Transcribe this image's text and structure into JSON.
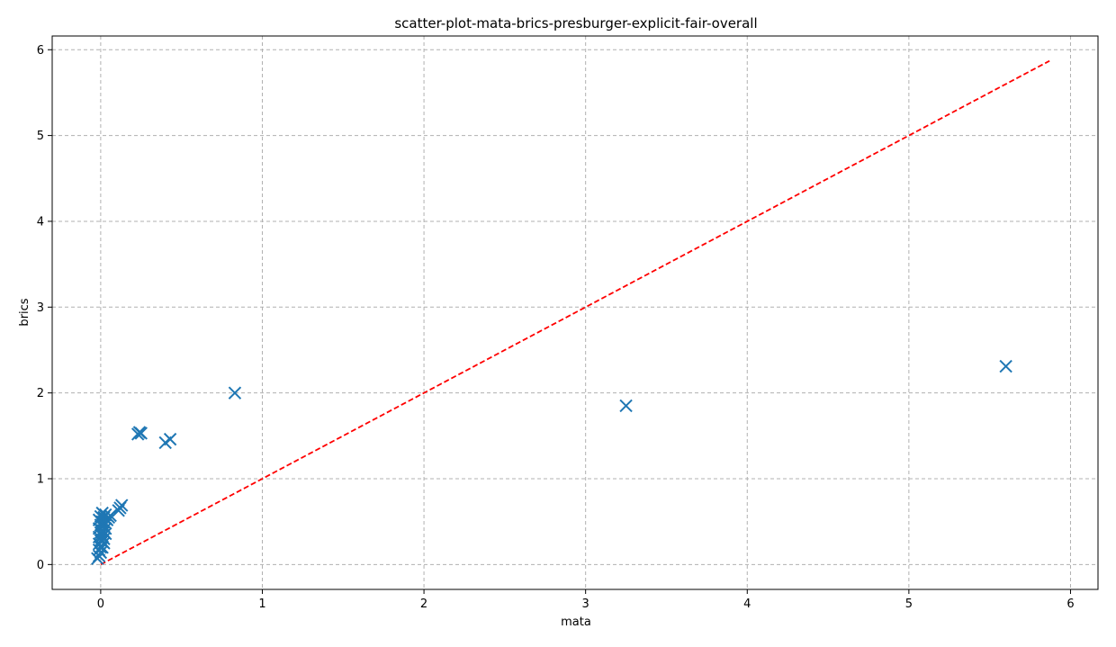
{
  "chart_data": {
    "type": "scatter",
    "title": "scatter-plot-mata-brics-presburger-explicit-fair-overall",
    "xlabel": "mata",
    "ylabel": "brics",
    "xlim": [
      -0.3,
      6.17
    ],
    "ylim": [
      -0.29,
      6.16
    ],
    "x_ticks": [
      0,
      1,
      2,
      3,
      4,
      5,
      6
    ],
    "y_ticks": [
      0,
      1,
      2,
      3,
      4,
      5,
      6
    ],
    "x_tick_labels": [
      "0",
      "1",
      "2",
      "3",
      "4",
      "5",
      "6"
    ],
    "y_tick_labels": [
      "0",
      "1",
      "2",
      "3",
      "4",
      "5",
      "6"
    ],
    "grid": true,
    "grid_style": "dashed",
    "marker": "x",
    "marker_color": "#1f77b4",
    "reference_line": {
      "x": [
        0,
        5.87
      ],
      "y": [
        0,
        5.87
      ],
      "color": "#ff0000",
      "style": "dashed"
    },
    "points": [
      {
        "x": 5.6,
        "y": 2.31
      },
      {
        "x": 3.25,
        "y": 1.85
      },
      {
        "x": 0.83,
        "y": 2.0
      },
      {
        "x": 0.43,
        "y": 1.46
      },
      {
        "x": 0.4,
        "y": 1.42
      },
      {
        "x": 0.25,
        "y": 1.53
      },
      {
        "x": 0.24,
        "y": 1.54
      },
      {
        "x": 0.23,
        "y": 1.52
      },
      {
        "x": 0.13,
        "y": 0.69
      },
      {
        "x": 0.12,
        "y": 0.66
      },
      {
        "x": 0.11,
        "y": 0.63
      },
      {
        "x": 0.06,
        "y": 0.57
      },
      {
        "x": 0.05,
        "y": 0.55
      },
      {
        "x": 0.04,
        "y": 0.52
      },
      {
        "x": 0.03,
        "y": 0.58
      },
      {
        "x": 0.03,
        "y": 0.48
      },
      {
        "x": 0.03,
        "y": 0.42
      },
      {
        "x": 0.03,
        "y": 0.36
      },
      {
        "x": 0.02,
        "y": 0.55
      },
      {
        "x": 0.02,
        "y": 0.45
      },
      {
        "x": 0.02,
        "y": 0.38
      },
      {
        "x": 0.02,
        "y": 0.3
      },
      {
        "x": 0.02,
        "y": 0.25
      },
      {
        "x": 0.01,
        "y": 0.6
      },
      {
        "x": 0.01,
        "y": 0.5
      },
      {
        "x": 0.01,
        "y": 0.4
      },
      {
        "x": 0.01,
        "y": 0.33
      },
      {
        "x": 0.01,
        "y": 0.27
      },
      {
        "x": 0.01,
        "y": 0.2
      },
      {
        "x": 0.0,
        "y": 0.56
      },
      {
        "x": 0.0,
        "y": 0.46
      },
      {
        "x": 0.0,
        "y": 0.37
      },
      {
        "x": 0.0,
        "y": 0.28
      },
      {
        "x": 0.0,
        "y": 0.2
      },
      {
        "x": 0.0,
        "y": 0.14
      },
      {
        "x": -0.01,
        "y": 0.52
      },
      {
        "x": -0.01,
        "y": 0.42
      },
      {
        "x": -0.01,
        "y": 0.32
      },
      {
        "x": -0.01,
        "y": 0.24
      },
      {
        "x": -0.01,
        "y": 0.17
      },
      {
        "x": -0.01,
        "y": 0.1
      },
      {
        "x": -0.02,
        "y": 0.07
      }
    ]
  }
}
